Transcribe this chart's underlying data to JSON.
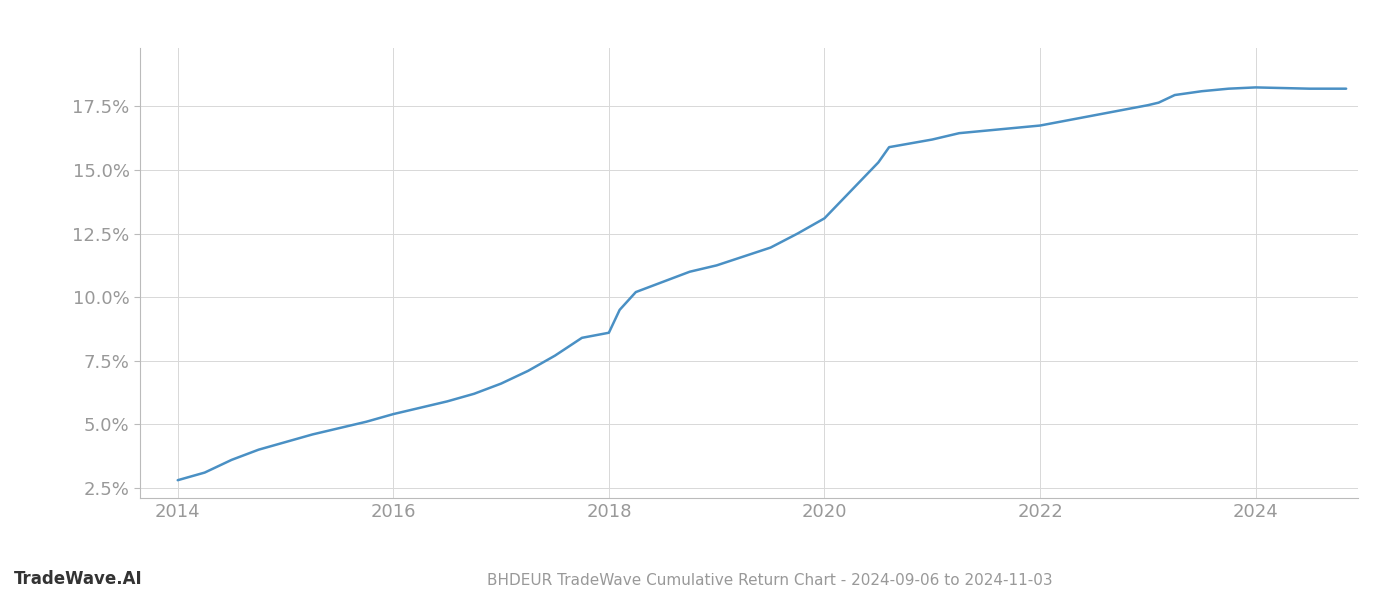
{
  "title": "BHDEUR TradeWave Cumulative Return Chart - 2024-09-06 to 2024-11-03",
  "watermark": "TradeWave.AI",
  "line_color": "#4a90c4",
  "background_color": "#ffffff",
  "grid_color": "#cccccc",
  "x_values": [
    2014.0,
    2014.25,
    2014.5,
    2014.75,
    2015.0,
    2015.25,
    2015.5,
    2015.75,
    2016.0,
    2016.25,
    2016.5,
    2016.75,
    2017.0,
    2017.25,
    2017.5,
    2017.75,
    2018.0,
    2018.1,
    2018.25,
    2018.5,
    2018.75,
    2019.0,
    2019.25,
    2019.5,
    2019.75,
    2020.0,
    2020.25,
    2020.5,
    2020.6,
    2021.0,
    2021.25,
    2021.5,
    2021.75,
    2022.0,
    2022.25,
    2022.5,
    2022.75,
    2023.0,
    2023.1,
    2023.25,
    2023.5,
    2023.75,
    2024.0,
    2024.5,
    2024.84
  ],
  "y_values": [
    2.8,
    3.1,
    3.6,
    4.0,
    4.3,
    4.6,
    4.85,
    5.1,
    5.4,
    5.65,
    5.9,
    6.2,
    6.6,
    7.1,
    7.7,
    8.4,
    8.6,
    9.5,
    10.2,
    10.6,
    11.0,
    11.25,
    11.6,
    11.95,
    12.5,
    13.1,
    14.2,
    15.3,
    15.9,
    16.2,
    16.45,
    16.55,
    16.65,
    16.75,
    16.95,
    17.15,
    17.35,
    17.55,
    17.65,
    17.95,
    18.1,
    18.2,
    18.25,
    18.2,
    18.2
  ],
  "yticks": [
    2.5,
    5.0,
    7.5,
    10.0,
    12.5,
    15.0,
    17.5
  ],
  "xticks": [
    2014,
    2016,
    2018,
    2020,
    2022,
    2024
  ],
  "xlim": [
    2013.65,
    2024.95
  ],
  "ylim": [
    2.1,
    19.8
  ],
  "tick_label_color": "#999999",
  "spine_color": "#bbbbbb",
  "grid_color_actual": "#d8d8d8",
  "line_width": 1.8,
  "title_fontsize": 11,
  "watermark_fontsize": 12,
  "tick_fontsize": 13
}
